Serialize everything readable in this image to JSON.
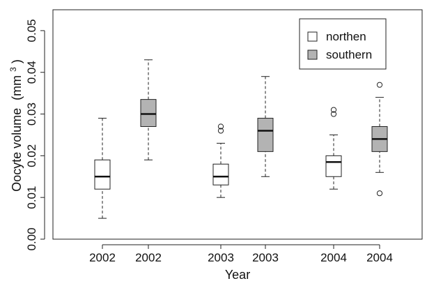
{
  "chart_data": {
    "type": "boxplot",
    "title": "",
    "xlabel": "Year",
    "ylabel": "Oocyte volume",
    "ylabel_unit_base": "(mm",
    "ylabel_unit_exp": "3",
    "ylabel_unit_close": ")",
    "ylim": [
      0,
      0.055
    ],
    "y_ticks": [
      "0.00",
      "0.01",
      "0.02",
      "0.03",
      "0.04",
      "0.05"
    ],
    "y_tick_values": [
      0.0,
      0.01,
      0.02,
      0.03,
      0.04,
      0.05
    ],
    "legend_position": "top-right",
    "series": [
      {
        "name": "northen",
        "color": "#ffffff"
      },
      {
        "name": "southern",
        "color": "#b3b3b3"
      }
    ],
    "boxes": [
      {
        "year": "2002",
        "series": "northen",
        "whisker_low": 0.005,
        "q1": 0.012,
        "median": 0.015,
        "q3": 0.019,
        "whisker_high": 0.029,
        "outliers": []
      },
      {
        "year": "2002",
        "series": "southern",
        "whisker_low": 0.019,
        "q1": 0.027,
        "median": 0.03,
        "q3": 0.0335,
        "whisker_high": 0.043,
        "outliers": []
      },
      {
        "year": "2003",
        "series": "northen",
        "whisker_low": 0.01,
        "q1": 0.013,
        "median": 0.015,
        "q3": 0.018,
        "whisker_high": 0.023,
        "outliers": [
          0.026,
          0.027
        ]
      },
      {
        "year": "2003",
        "series": "southern",
        "whisker_low": 0.015,
        "q1": 0.021,
        "median": 0.026,
        "q3": 0.029,
        "whisker_high": 0.039,
        "outliers": []
      },
      {
        "year": "2004",
        "series": "northen",
        "whisker_low": 0.012,
        "q1": 0.015,
        "median": 0.0185,
        "q3": 0.02,
        "whisker_high": 0.025,
        "outliers": [
          0.03,
          0.031
        ]
      },
      {
        "year": "2004",
        "series": "southern",
        "whisker_low": 0.016,
        "q1": 0.021,
        "median": 0.024,
        "q3": 0.027,
        "whisker_high": 0.034,
        "outliers": [
          0.011,
          0.037
        ]
      }
    ],
    "grid": false
  }
}
